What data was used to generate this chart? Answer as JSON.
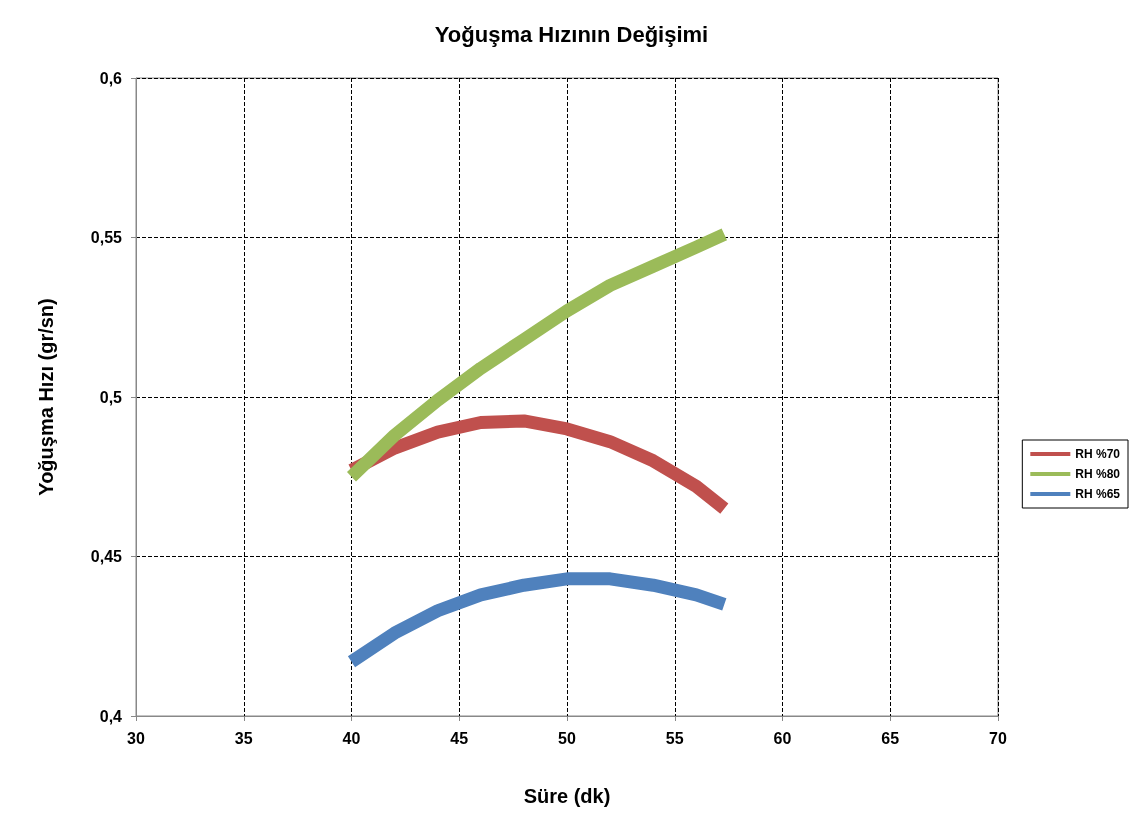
{
  "chart_data": {
    "type": "line",
    "title": "Yoğuşma Hızının Değişimi",
    "xlabel": "Süre (dk)",
    "ylabel": "Yoğuşma Hızı (gr/sn)",
    "x": [
      40,
      42,
      44,
      46,
      48,
      50,
      52,
      54,
      56,
      57.3
    ],
    "series": [
      {
        "name": "RH %70",
        "color": "#c0504d",
        "values": [
          0.477,
          0.484,
          0.489,
          0.492,
          0.4925,
          0.49,
          0.486,
          0.48,
          0.472,
          0.465
        ]
      },
      {
        "name": "RH %80",
        "color": "#9bbb59",
        "values": [
          0.475,
          0.488,
          0.499,
          0.509,
          0.518,
          0.527,
          0.535,
          0.541,
          0.547,
          0.551
        ]
      },
      {
        "name": "RH %65",
        "color": "#4f81bd",
        "values": [
          0.417,
          0.426,
          0.433,
          0.438,
          0.441,
          0.443,
          0.443,
          0.441,
          0.438,
          0.435
        ]
      }
    ],
    "xlim": [
      30,
      70
    ],
    "xticks": [
      30,
      35,
      40,
      45,
      50,
      55,
      60,
      65,
      70
    ],
    "ylim": [
      0.4,
      0.6
    ],
    "yticks": [
      {
        "value": 0.4,
        "label": "0,4"
      },
      {
        "value": 0.45,
        "label": "0,45"
      },
      {
        "value": 0.5,
        "label": "0,5"
      },
      {
        "value": 0.55,
        "label": "0,55"
      },
      {
        "value": 0.6,
        "label": "0,6"
      }
    ],
    "grid": true,
    "legend": "right",
    "marker": "none",
    "line_style": "solid"
  }
}
